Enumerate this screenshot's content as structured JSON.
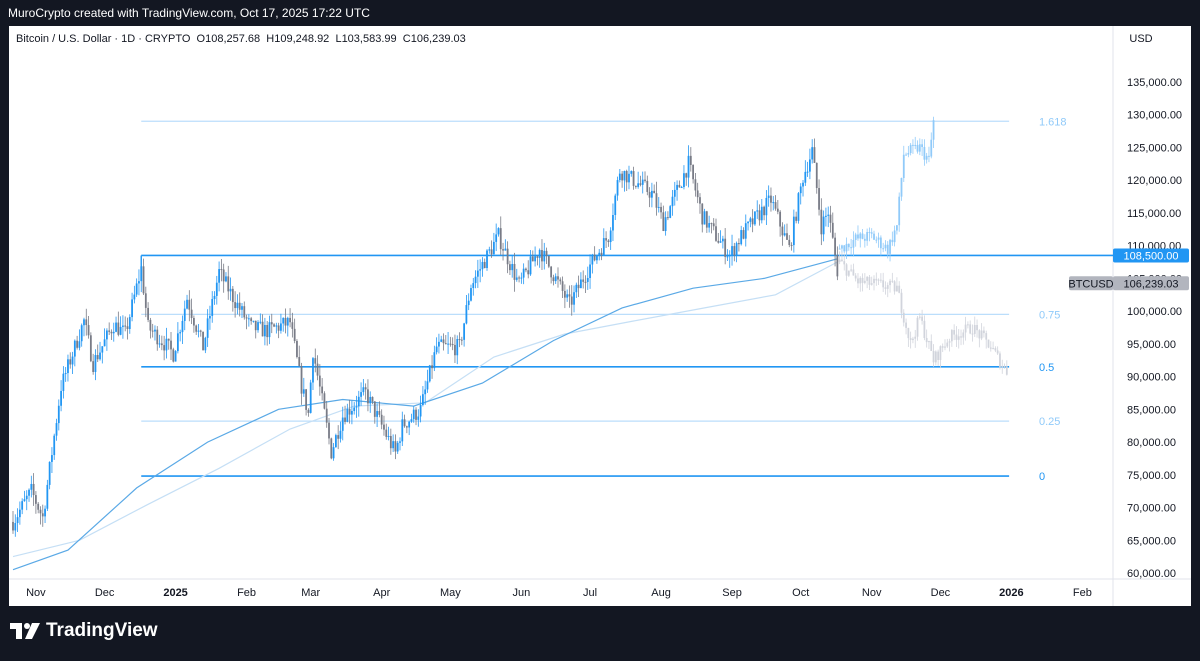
{
  "header": {
    "attribution": "MuroCrypto created with TradingView.com, Oct 17, 2025 17:22 UTC"
  },
  "legend": {
    "symbol": "Bitcoin / U.S. Dollar · 1D · CRYPTO",
    "open_label": "O",
    "open": "108,257.68",
    "high_label": "H",
    "high": "109,248.92",
    "low_label": "L",
    "low": "103,583.99",
    "close_label": "C",
    "close": "106,239.03"
  },
  "currency_button": "USD",
  "footer": {
    "brand": "TradingView"
  },
  "colors": {
    "up": "#2962ff",
    "up_light": "#2196f3",
    "down": "#787b86",
    "level": "#2196f3",
    "level_light": "#bbdefb",
    "projection_up": "#90caf9",
    "projection_down": "#d1d4dc",
    "ma_fast": "#5aa9e6",
    "ma_slow": "#c5dff5"
  },
  "chart_data": {
    "type": "candlestick",
    "symbol": "BTCUSD",
    "ylim": [
      58000,
      141000
    ],
    "y_ticks": [
      60000,
      65000,
      70000,
      75000,
      80000,
      85000,
      90000,
      95000,
      100000,
      105000,
      110000,
      115000,
      120000,
      125000,
      130000,
      135000
    ],
    "y_tick_labels": [
      "60,000.00",
      "65,000.00",
      "70,000.00",
      "75,000.00",
      "80,000.00",
      "85,000.00",
      "90,000.00",
      "95,000.00",
      "100,000.00",
      "105,000.00",
      "110,000.00",
      "115,000.00",
      "120,000.00",
      "125,000.00",
      "130,000.00",
      "135,000.00"
    ],
    "x_ticks": [
      {
        "label": "Nov",
        "date": "2024-11-01",
        "bold": false
      },
      {
        "label": "Dec",
        "date": "2024-12-01",
        "bold": false
      },
      {
        "label": "2025",
        "date": "2025-01-01",
        "bold": true
      },
      {
        "label": "Feb",
        "date": "2025-02-01",
        "bold": false
      },
      {
        "label": "Mar",
        "date": "2025-03-01",
        "bold": false
      },
      {
        "label": "Apr",
        "date": "2025-04-01",
        "bold": false
      },
      {
        "label": "May",
        "date": "2025-05-01",
        "bold": false
      },
      {
        "label": "Jun",
        "date": "2025-06-01",
        "bold": false
      },
      {
        "label": "Jul",
        "date": "2025-07-01",
        "bold": false
      },
      {
        "label": "Aug",
        "date": "2025-08-01",
        "bold": false
      },
      {
        "label": "Sep",
        "date": "2025-09-01",
        "bold": false
      },
      {
        "label": "Oct",
        "date": "2025-10-01",
        "bold": false
      },
      {
        "label": "Nov",
        "date": "2025-11-01",
        "bold": false
      },
      {
        "label": "Dec",
        "date": "2025-12-01",
        "bold": false
      },
      {
        "label": "2026",
        "date": "2026-01-01",
        "bold": true
      },
      {
        "label": "Feb",
        "date": "2026-02-01",
        "bold": false
      }
    ],
    "fib_levels": [
      {
        "label": "1.618",
        "price": 129000,
        "start": "2024-12-17",
        "end": "2025-12-31",
        "strong": false
      },
      {
        "label": "0.75",
        "price": 99500,
        "start": "2024-12-17",
        "end": "2025-12-31",
        "strong": false
      },
      {
        "label": "0.5",
        "price": 91500,
        "start": "2024-12-17",
        "end": "2025-12-31",
        "strong": true
      },
      {
        "label": "0.25",
        "price": 83200,
        "start": "2024-12-17",
        "end": "2025-12-31",
        "strong": false
      },
      {
        "label": "0",
        "price": 74800,
        "start": "2024-12-17",
        "end": "2025-12-31",
        "strong": true
      }
    ],
    "range_top": {
      "price": 108500,
      "start": "2024-12-17",
      "end": "2025-12-31"
    },
    "price_tags": [
      {
        "text": "108,500.00",
        "price": 108500,
        "kind": "level"
      },
      {
        "text": "BTCUSD",
        "price": 106239,
        "kind": "symbol"
      },
      {
        "text": "106,239.03",
        "price": 106239,
        "kind": "last"
      }
    ],
    "price_keypoints": [
      [
        "2024-10-22",
        67800
      ],
      [
        "2024-10-30",
        72500
      ],
      [
        "2024-11-04",
        68500
      ],
      [
        "2024-11-07",
        75900
      ],
      [
        "2024-11-12",
        88500
      ],
      [
        "2024-11-22",
        98500
      ],
      [
        "2024-11-26",
        92000
      ],
      [
        "2024-12-05",
        98000
      ],
      [
        "2024-12-10",
        96500
      ],
      [
        "2024-12-17",
        106500
      ],
      [
        "2024-12-20",
        97500
      ],
      [
        "2024-12-26",
        95500
      ],
      [
        "2024-12-31",
        93500
      ],
      [
        "2025-01-06",
        102000
      ],
      [
        "2025-01-13",
        94500
      ],
      [
        "2025-01-20",
        106000
      ],
      [
        "2025-01-27",
        101500
      ],
      [
        "2025-02-03",
        97500
      ],
      [
        "2025-02-10",
        97000
      ],
      [
        "2025-02-20",
        98300
      ],
      [
        "2025-02-25",
        88500
      ],
      [
        "2025-02-28",
        84300
      ],
      [
        "2025-03-02",
        94000
      ],
      [
        "2025-03-10",
        78500
      ],
      [
        "2025-03-15",
        84000
      ],
      [
        "2025-03-25",
        87500
      ],
      [
        "2025-04-01",
        82500
      ],
      [
        "2025-04-07",
        78300
      ],
      [
        "2025-04-10",
        82500
      ],
      [
        "2025-04-18",
        85000
      ],
      [
        "2025-04-25",
        94500
      ],
      [
        "2025-05-05",
        94500
      ],
      [
        "2025-05-10",
        104000
      ],
      [
        "2025-05-22",
        111500
      ],
      [
        "2025-05-31",
        104000
      ],
      [
        "2025-06-09",
        109500
      ],
      [
        "2025-06-22",
        101000
      ],
      [
        "2025-07-01",
        107000
      ],
      [
        "2025-07-09",
        111500
      ],
      [
        "2025-07-14",
        121500
      ],
      [
        "2025-07-28",
        118000
      ],
      [
        "2025-08-02",
        113500
      ],
      [
        "2025-08-13",
        122500
      ],
      [
        "2025-08-19",
        114500
      ],
      [
        "2025-08-31",
        108500
      ],
      [
        "2025-09-05",
        111500
      ],
      [
        "2025-09-18",
        117000
      ],
      [
        "2025-09-26",
        109500
      ],
      [
        "2025-10-02",
        120500
      ],
      [
        "2025-10-06",
        124500
      ],
      [
        "2025-10-10",
        113000
      ],
      [
        "2025-10-13",
        115200
      ],
      [
        "2025-10-17",
        106200
      ]
    ],
    "projection_up_keypoints": [
      [
        "2025-10-18",
        109500
      ],
      [
        "2025-10-25",
        111000
      ],
      [
        "2025-11-01",
        111500
      ],
      [
        "2025-11-08",
        109500
      ],
      [
        "2025-11-12",
        113000
      ],
      [
        "2025-11-15",
        124000
      ],
      [
        "2025-11-22",
        125000
      ],
      [
        "2025-11-26",
        123000
      ],
      [
        "2025-11-28",
        129000
      ]
    ],
    "projection_down_keypoints": [
      [
        "2025-10-18",
        107500
      ],
      [
        "2025-10-26",
        104500
      ],
      [
        "2025-11-05",
        104000
      ],
      [
        "2025-11-12",
        103500
      ],
      [
        "2025-11-18",
        95000
      ],
      [
        "2025-11-22",
        99000
      ],
      [
        "2025-11-28",
        92500
      ],
      [
        "2025-12-05",
        96000
      ],
      [
        "2025-12-15",
        97500
      ],
      [
        "2025-12-22",
        95000
      ],
      [
        "2025-12-30",
        90800
      ]
    ],
    "ma_fast_keypoints": [
      [
        "2024-10-22",
        60500
      ],
      [
        "2024-11-15",
        63500
      ],
      [
        "2024-12-15",
        73000
      ],
      [
        "2025-01-15",
        80000
      ],
      [
        "2025-02-15",
        85000
      ],
      [
        "2025-03-15",
        86500
      ],
      [
        "2025-04-15",
        85500
      ],
      [
        "2025-05-15",
        89000
      ],
      [
        "2025-06-15",
        95500
      ],
      [
        "2025-07-15",
        100500
      ],
      [
        "2025-08-15",
        103500
      ],
      [
        "2025-09-15",
        105000
      ],
      [
        "2025-10-17",
        108000
      ]
    ],
    "ma_slow_keypoints": [
      [
        "2024-10-22",
        62500
      ],
      [
        "2024-11-20",
        65000
      ],
      [
        "2024-12-20",
        70500
      ],
      [
        "2025-01-20",
        76000
      ],
      [
        "2025-02-20",
        82000
      ],
      [
        "2025-03-20",
        85500
      ],
      [
        "2025-04-20",
        86000
      ],
      [
        "2025-05-20",
        93000
      ],
      [
        "2025-06-20",
        96500
      ],
      [
        "2025-07-20",
        98500
      ],
      [
        "2025-08-20",
        100500
      ],
      [
        "2025-09-20",
        102500
      ],
      [
        "2025-10-17",
        107500
      ]
    ]
  }
}
